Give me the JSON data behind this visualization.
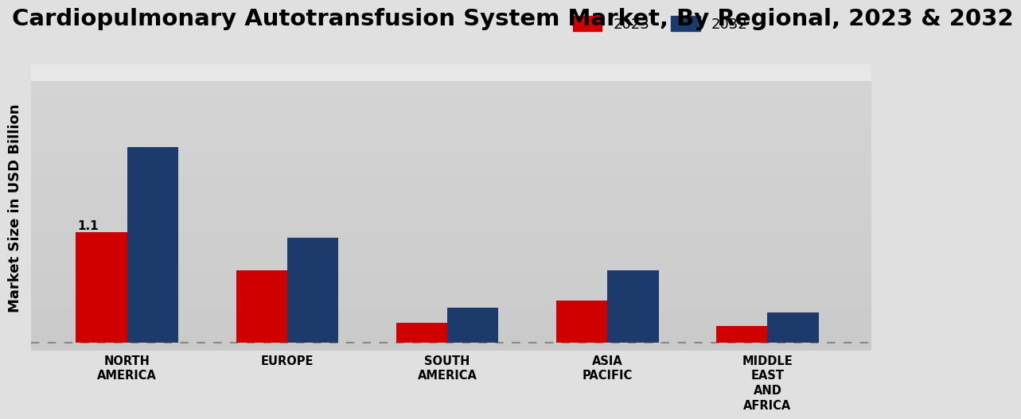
{
  "title": "Cardiopulmonary Autotransfusion System Market, By Regional, 2023 & 2032",
  "ylabel": "Market Size in USD Billion",
  "categories": [
    "NORTH\nAMERICA",
    "EUROPE",
    "SOUTH\nAMERICA",
    "ASIA\nPACIFIC",
    "MIDDLE\nEAST\nAND\nAFRICA"
  ],
  "values_2023": [
    1.1,
    0.72,
    0.2,
    0.42,
    0.17
  ],
  "values_2032": [
    1.95,
    1.05,
    0.35,
    0.72,
    0.3
  ],
  "color_2023": "#d10000",
  "color_2032": "#1c3a6b",
  "annotation_value": "1.1",
  "annotation_bar_idx": 0,
  "bar_width": 0.32,
  "legend_labels": [
    "2023",
    "2032"
  ],
  "title_fontsize": 21,
  "ylabel_fontsize": 13,
  "tick_fontsize": 10.5,
  "legend_fontsize": 13,
  "bg_color_top": "#f0f0f0",
  "bg_color_bottom": "#d8d8d8"
}
